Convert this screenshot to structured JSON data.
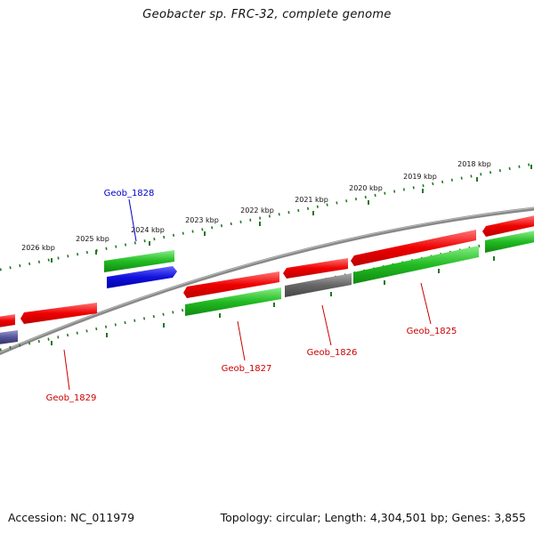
{
  "title": "Geobacter sp. FRC-32, complete genome",
  "footer": {
    "accession": "Accession: NC_011979",
    "stats": "Topology: circular; Length: 4,304,501 bp; Genes: 3,855"
  },
  "colors": {
    "forward_cds": "#ee1111",
    "reverse_cds": "#22bb22",
    "highlight": "#1111dd",
    "other": "#666666",
    "tick": "#227722",
    "backbone": "#888888",
    "highlight_label": "#0000cc",
    "label": "#cc0000",
    "partial": "#555599"
  },
  "kbp_labels": [
    "2026 kbp",
    "2025 kbp",
    "2024 kbp",
    "2023 kbp",
    "2022 kbp",
    "2021 kbp",
    "2020 kbp",
    "2019 kbp",
    "2018 kbp"
  ],
  "gene_labels": [
    {
      "name": "Geob_1828",
      "highlight": true
    },
    {
      "name": "Geob_1827",
      "highlight": false
    },
    {
      "name": "Geob_1826",
      "highlight": false
    },
    {
      "name": "Geob_1825",
      "highlight": false
    },
    {
      "name": "Geob_1829",
      "highlight": false
    }
  ]
}
